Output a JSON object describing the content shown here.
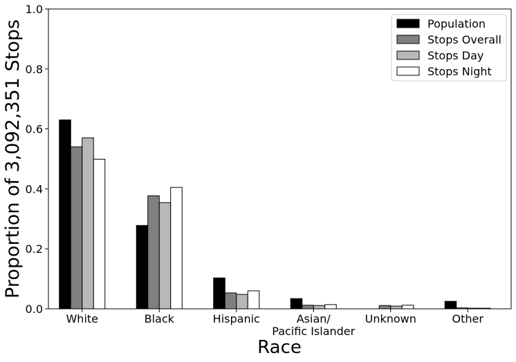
{
  "chart_data": {
    "type": "bar",
    "title": "",
    "xlabel": "Race",
    "ylabel": "Proportion of  3,092,351 Stops",
    "ylim": [
      0,
      1.0
    ],
    "yticks": [
      "0.0",
      "0.2",
      "0.4",
      "0.6",
      "0.8",
      "1.0"
    ],
    "categories": [
      [
        "White"
      ],
      [
        "Black"
      ],
      [
        "Hispanic"
      ],
      [
        "Asian/",
        "Pacific Islander"
      ],
      [
        "Unknown"
      ],
      [
        "Other"
      ]
    ],
    "series": [
      {
        "name": "Population",
        "color": "#000000",
        "values": [
          0.63,
          0.278,
          0.103,
          0.034,
          0.0,
          0.025
        ]
      },
      {
        "name": "Stops Overall",
        "color": "#808080",
        "values": [
          0.54,
          0.377,
          0.053,
          0.012,
          0.011,
          0.003
        ]
      },
      {
        "name": "Stops Day",
        "color": "#b8b8b8",
        "values": [
          0.57,
          0.354,
          0.048,
          0.011,
          0.009,
          0.002
        ]
      },
      {
        "name": "Stops Night",
        "color": "#ffffff",
        "values": [
          0.499,
          0.405,
          0.06,
          0.014,
          0.012,
          0.002
        ]
      }
    ],
    "legend": "top-right",
    "grid": false
  }
}
